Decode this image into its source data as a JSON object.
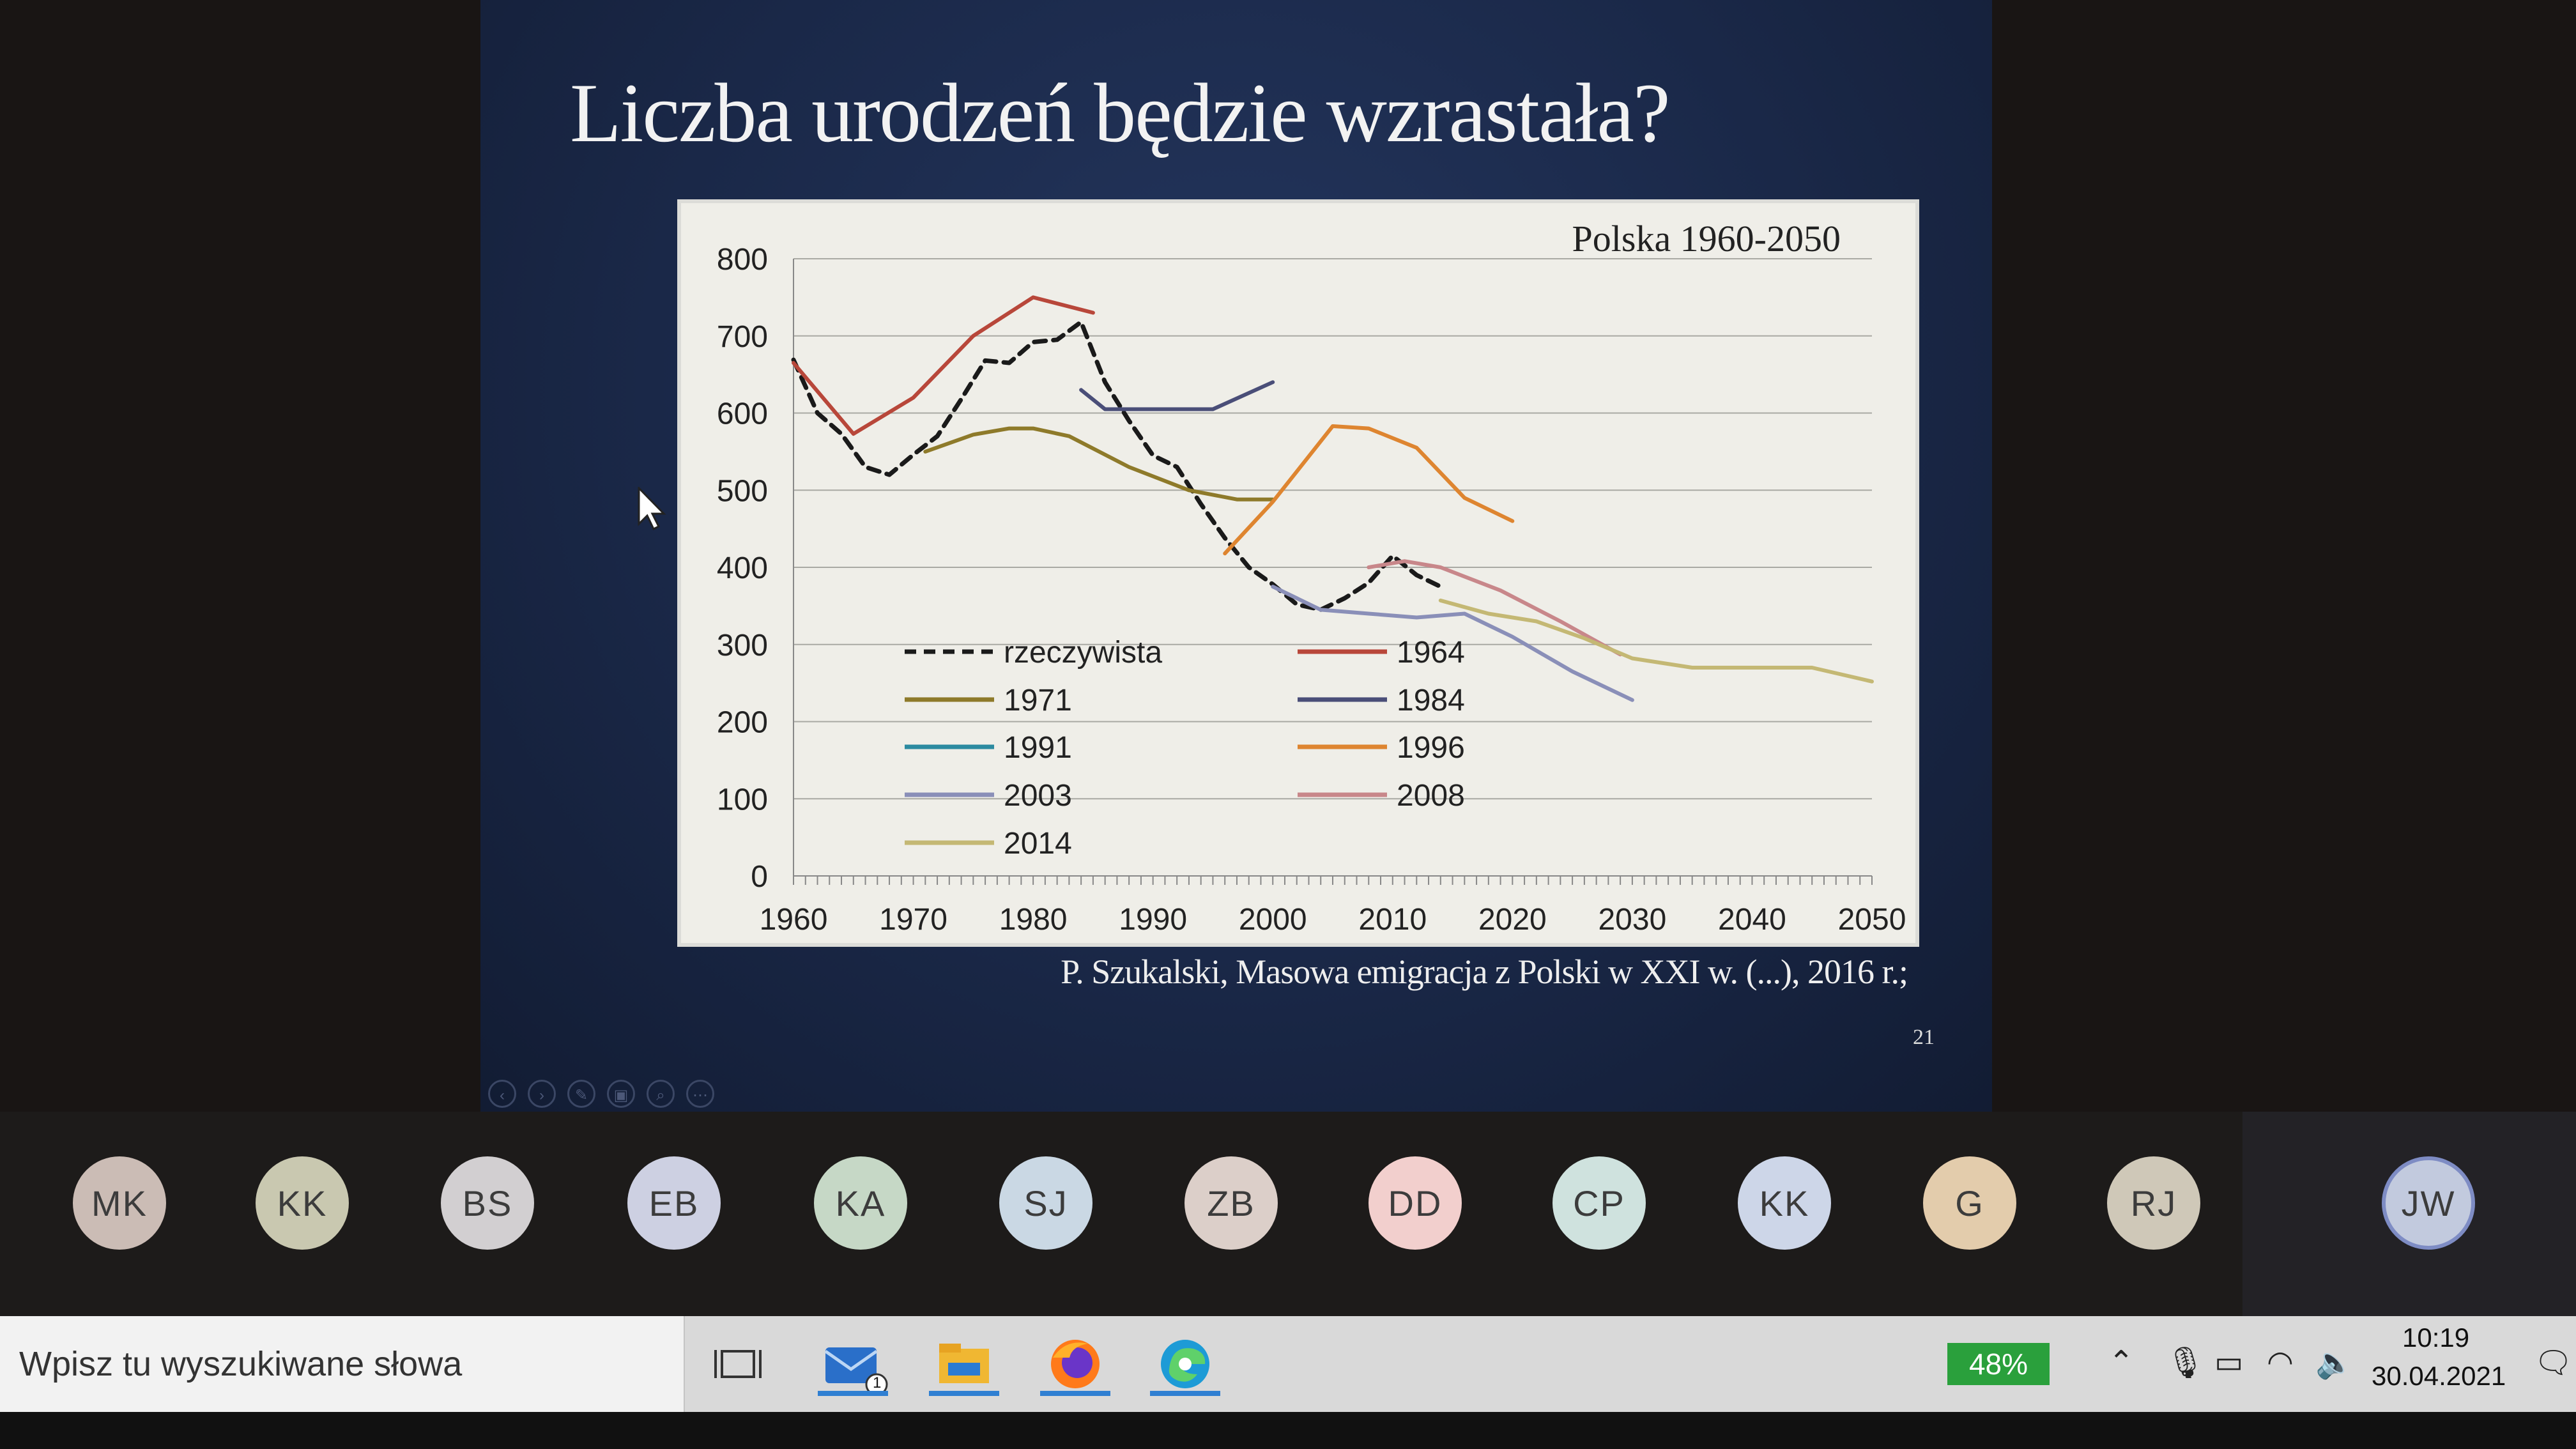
{
  "slide": {
    "title": "Liczba urodzeń będzie wzrastała?",
    "source": "P. Szukalski, Masowa emigracja z Polski w XXI w. (...), 2016 r.;",
    "page_number": "21"
  },
  "chart_data": {
    "type": "line",
    "title": "Polska 1960-2050",
    "xlim": [
      1960,
      2050
    ],
    "ylim": [
      0,
      800
    ],
    "x_ticks": [
      "1960",
      "1970",
      "1980",
      "1990",
      "2000",
      "2010",
      "2020",
      "2030",
      "2040",
      "2050"
    ],
    "y_ticks": [
      "0",
      "100",
      "200",
      "300",
      "400",
      "500",
      "600",
      "700",
      "800"
    ],
    "grid": true,
    "legend_position": "inside-bottom-left",
    "series": [
      {
        "name": "rzeczywista",
        "color": "#1a1a1a",
        "dashed": true,
        "x": [
          1960,
          1962,
          1964,
          1966,
          1968,
          1970,
          1972,
          1974,
          1976,
          1978,
          1980,
          1982,
          1984,
          1986,
          1988,
          1990,
          1992,
          1994,
          1996,
          1998,
          2000,
          2002,
          2004,
          2006,
          2008,
          2010,
          2012,
          2014
        ],
        "y": [
          669,
          600,
          573,
          530,
          520,
          546,
          570,
          618,
          668,
          665,
          692,
          695,
          718,
          640,
          590,
          545,
          530,
          482,
          438,
          400,
          378,
          352,
          345,
          360,
          380,
          415,
          390,
          375
        ]
      },
      {
        "name": "1964",
        "color": "#b8473a",
        "x": [
          1960,
          1965,
          1970,
          1975,
          1980,
          1985
        ],
        "y": [
          665,
          573,
          620,
          700,
          750,
          730
        ]
      },
      {
        "name": "1971",
        "color": "#8e7a2a",
        "x": [
          1971,
          1975,
          1978,
          1980,
          1983,
          1988,
          1993,
          1997,
          2000
        ],
        "y": [
          550,
          572,
          580,
          580,
          570,
          530,
          500,
          488,
          488
        ]
      },
      {
        "name": "1984",
        "color": "#4a4e78",
        "x": [
          1984,
          1986,
          1990,
          1995,
          2000
        ],
        "y": [
          630,
          605,
          605,
          605,
          640
        ]
      },
      {
        "name": "1991",
        "color": "#2b8aa0",
        "x": [],
        "y": []
      },
      {
        "name": "1996",
        "color": "#de8530",
        "x": [
          1996,
          2000,
          2005,
          2008,
          2012,
          2016,
          2020
        ],
        "y": [
          418,
          485,
          583,
          580,
          555,
          490,
          460
        ]
      },
      {
        "name": "2003",
        "color": "#8a8fb8",
        "x": [
          2000,
          2004,
          2008,
          2012,
          2016,
          2020,
          2025,
          2030
        ],
        "y": [
          375,
          345,
          340,
          335,
          340,
          310,
          265,
          228
        ]
      },
      {
        "name": "2008",
        "color": "#c8878a",
        "x": [
          2008,
          2011,
          2014,
          2019,
          2024,
          2029
        ],
        "y": [
          400,
          408,
          400,
          370,
          330,
          287
        ]
      },
      {
        "name": "2014",
        "color": "#c4b874",
        "x": [
          2014,
          2018,
          2022,
          2026,
          2030,
          2035,
          2040,
          2045,
          2050
        ],
        "y": [
          357,
          340,
          330,
          308,
          282,
          270,
          270,
          270,
          252
        ]
      }
    ]
  },
  "slide_nav": [
    "‹",
    "›",
    "✎",
    "▣",
    "⌕",
    "⋯"
  ],
  "participants": [
    {
      "initials": "MK",
      "color": "#cbbcb5"
    },
    {
      "initials": "KK",
      "color": "#c9c8b0"
    },
    {
      "initials": "BS",
      "color": "#d2cfd1"
    },
    {
      "initials": "EB",
      "color": "#cdd0e2"
    },
    {
      "initials": "KA",
      "color": "#c6d8c6"
    },
    {
      "initials": "SJ",
      "color": "#cad8e4"
    },
    {
      "initials": "ZB",
      "color": "#dccfc9"
    },
    {
      "initials": "DD",
      "color": "#f2cfcd"
    },
    {
      "initials": "CP",
      "color": "#cfe2de"
    },
    {
      "initials": "KK",
      "color": "#cdd6e8"
    },
    {
      "initials": "G",
      "color": "#e3ccac"
    },
    {
      "initials": "RJ",
      "color": "#cfc8b8"
    }
  ],
  "self_avatar": {
    "initials": "JW",
    "color": "#c2cade"
  },
  "taskbar": {
    "search_placeholder": "Wpisz tu wyszukiwane słowa",
    "mail_badge": "1",
    "battery_percent": "48%",
    "time": "10:19",
    "date": "30.04.2021",
    "icons": [
      "task-view-icon",
      "mail-icon",
      "file-explorer-icon",
      "firefox-icon",
      "edge-icon"
    ]
  }
}
